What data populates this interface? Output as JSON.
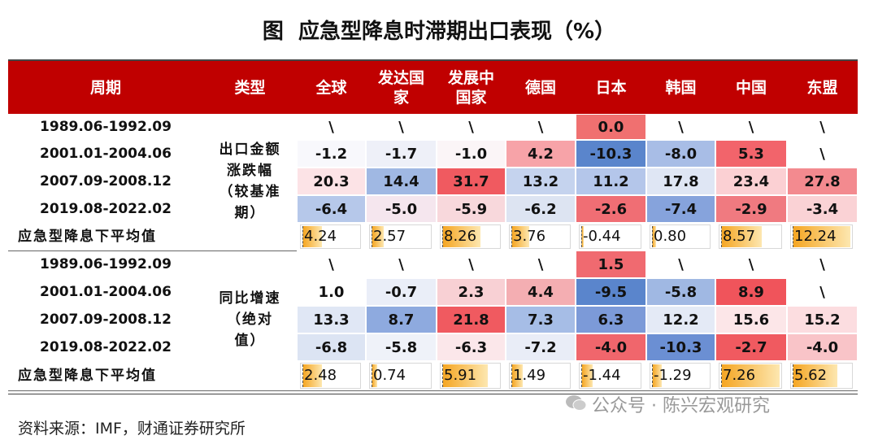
{
  "title": "图  应急型降息时滞期出口表现（%）",
  "header": {
    "period": "周期",
    "type": "类型",
    "columns": [
      "全球",
      "发达国家",
      "发展中国家",
      "德国",
      "日本",
      "韩国",
      "中国",
      "东盟"
    ]
  },
  "sections": [
    {
      "type_lines": [
        "出口金额",
        "涨跌幅",
        "（较基准",
        "期）"
      ],
      "rows": [
        {
          "period": "1989.06-1992.09",
          "cells": [
            {
              "text": "\\",
              "color": "#ffffff"
            },
            {
              "text": "\\",
              "color": "#ffffff"
            },
            {
              "text": "\\",
              "color": "#ffffff"
            },
            {
              "text": "\\",
              "color": "#ffffff"
            },
            {
              "text": "0.0",
              "color": "#f07070"
            },
            {
              "text": "\\",
              "color": "#ffffff"
            },
            {
              "text": "\\",
              "color": "#ffffff"
            },
            {
              "text": "\\",
              "color": "#ffffff"
            }
          ]
        },
        {
          "period": "2001.01-2004.06",
          "cells": [
            {
              "text": "-1.2",
              "color": "#f8f8fc"
            },
            {
              "text": "-1.7",
              "color": "#eef0f8"
            },
            {
              "text": "-1.0",
              "color": "#fbf5f7"
            },
            {
              "text": "4.2",
              "color": "#f7a3a8"
            },
            {
              "text": "-10.3",
              "color": "#5a85cc"
            },
            {
              "text": "-8.0",
              "color": "#a8bde6"
            },
            {
              "text": "5.3",
              "color": "#f2646b"
            },
            {
              "text": "\\",
              "color": "#ffffff"
            }
          ]
        },
        {
          "period": "2007.09-2008.12",
          "cells": [
            {
              "text": "20.3",
              "color": "#fce3e6"
            },
            {
              "text": "14.4",
              "color": "#a0b8e3"
            },
            {
              "text": "31.7",
              "color": "#f05a60"
            },
            {
              "text": "13.2",
              "color": "#c5d3ee"
            },
            {
              "text": "11.2",
              "color": "#b4c6ea"
            },
            {
              "text": "17.8",
              "color": "#dfe6f4"
            },
            {
              "text": "23.4",
              "color": "#fbd0d3"
            },
            {
              "text": "27.8",
              "color": "#f38a8f"
            }
          ]
        },
        {
          "period": "2019.08-2022.02",
          "cells": [
            {
              "text": "-6.4",
              "color": "#b6c8ea"
            },
            {
              "text": "-5.0",
              "color": "#f5e6ee"
            },
            {
              "text": "-5.9",
              "color": "#f8d8dc"
            },
            {
              "text": "-6.2",
              "color": "#dde4f2"
            },
            {
              "text": "-2.6",
              "color": "#f06e74"
            },
            {
              "text": "-7.4",
              "color": "#86a3dc"
            },
            {
              "text": "-2.9",
              "color": "#f07a80"
            },
            {
              "text": "-3.4",
              "color": "#fad2d5"
            }
          ]
        }
      ],
      "average": {
        "label": "应急型降息下平均值",
        "values": [
          {
            "value": 4.24,
            "label": "4.24"
          },
          {
            "value": 2.57,
            "label": "2.57"
          },
          {
            "value": 8.26,
            "label": "8.26"
          },
          {
            "value": 3.76,
            "label": "3.76"
          },
          {
            "value": -0.44,
            "label": "-0.44"
          },
          {
            "value": 0.8,
            "label": "0.80"
          },
          {
            "value": 8.57,
            "label": "8.57"
          },
          {
            "value": 12.24,
            "label": "12.24"
          }
        ]
      }
    },
    {
      "type_lines": [
        "同比增速",
        "（绝对",
        "值）"
      ],
      "rows": [
        {
          "period": "1989.06-1992.09",
          "cells": [
            {
              "text": "\\",
              "color": "#ffffff"
            },
            {
              "text": "\\",
              "color": "#ffffff"
            },
            {
              "text": "\\",
              "color": "#ffffff"
            },
            {
              "text": "\\",
              "color": "#ffffff"
            },
            {
              "text": "1.5",
              "color": "#f06a70"
            },
            {
              "text": "\\",
              "color": "#ffffff"
            },
            {
              "text": "\\",
              "color": "#ffffff"
            },
            {
              "text": "\\",
              "color": "#ffffff"
            }
          ]
        },
        {
          "period": "2001.01-2004.06",
          "cells": [
            {
              "text": "1.0",
              "color": "#ffffff"
            },
            {
              "text": "-0.7",
              "color": "#eaeef8"
            },
            {
              "text": "2.3",
              "color": "#f8d0d4"
            },
            {
              "text": "4.4",
              "color": "#f4aeb2"
            },
            {
              "text": "-9.5",
              "color": "#5a85cc"
            },
            {
              "text": "-5.8",
              "color": "#a0b8e3"
            },
            {
              "text": "8.9",
              "color": "#f0545b"
            },
            {
              "text": "\\",
              "color": "#ffffff"
            }
          ]
        },
        {
          "period": "2007.09-2008.12",
          "cells": [
            {
              "text": "13.3",
              "color": "#e0e7f5"
            },
            {
              "text": "8.7",
              "color": "#8eaadf"
            },
            {
              "text": "21.8",
              "color": "#f05a60"
            },
            {
              "text": "7.3",
              "color": "#a6bde6"
            },
            {
              "text": "6.3",
              "color": "#7c9ad8"
            },
            {
              "text": "12.2",
              "color": "#e4eaf6"
            },
            {
              "text": "15.6",
              "color": "#fce6e8"
            },
            {
              "text": "15.2",
              "color": "#fcdde0"
            }
          ]
        },
        {
          "period": "2019.08-2022.02",
          "cells": [
            {
              "text": "-6.8",
              "color": "#dce4f3"
            },
            {
              "text": "-5.8",
              "color": "#eff2f9"
            },
            {
              "text": "-6.3",
              "color": "#fbe7ea"
            },
            {
              "text": "-7.2",
              "color": "#e9edf7"
            },
            {
              "text": "-4.0",
              "color": "#f0666c"
            },
            {
              "text": "-10.3",
              "color": "#6b8fd3"
            },
            {
              "text": "-2.7",
              "color": "#f05a60"
            },
            {
              "text": "-4.0",
              "color": "#f9c4c8"
            }
          ]
        }
      ],
      "average": {
        "label": "应急型降息下平均值",
        "values": [
          {
            "value": 2.48,
            "label": "2.48"
          },
          {
            "value": 0.74,
            "label": "0.74"
          },
          {
            "value": 5.91,
            "label": "5.91"
          },
          {
            "value": 1.49,
            "label": "1.49"
          },
          {
            "value": -1.44,
            "label": "-1.44"
          },
          {
            "value": -1.29,
            "label": "-1.29"
          },
          {
            "value": 7.26,
            "label": "7.26"
          },
          {
            "value": 5.62,
            "label": "5.62"
          }
        ]
      }
    }
  ],
  "watermark": "公众号 · 陈兴宏观研究",
  "source": "资料来源：IMF，财通证券研究所"
}
